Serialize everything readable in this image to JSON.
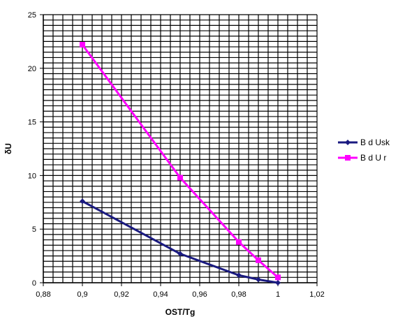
{
  "chart_data": {
    "type": "line",
    "xlabel": "OST/Tg",
    "ylabel": "δU",
    "xlim": [
      0.88,
      1.02
    ],
    "ylim": [
      0,
      25
    ],
    "x_ticks": [
      "0,88",
      "0,9",
      "0,92",
      "0,94",
      "0,96",
      "0,98",
      "1",
      "1,02"
    ],
    "y_ticks": [
      "0",
      "5",
      "10",
      "15",
      "20",
      "25"
    ],
    "grid": true,
    "legend_position": "right",
    "series": [
      {
        "name": "B   d Usk",
        "color": "#1a1a80",
        "marker": "diamond",
        "points": [
          [
            0.9,
            7.6
          ],
          [
            0.95,
            2.7
          ],
          [
            0.98,
            0.7
          ],
          [
            0.99,
            0.3
          ],
          [
            1.0,
            0.0
          ]
        ]
      },
      {
        "name": "B   d U  r",
        "color": "#ff00ff",
        "marker": "square",
        "points": [
          [
            0.9,
            22.2
          ],
          [
            0.95,
            9.8
          ],
          [
            0.98,
            3.8
          ],
          [
            0.99,
            2.1
          ],
          [
            1.0,
            0.5
          ]
        ]
      }
    ]
  }
}
